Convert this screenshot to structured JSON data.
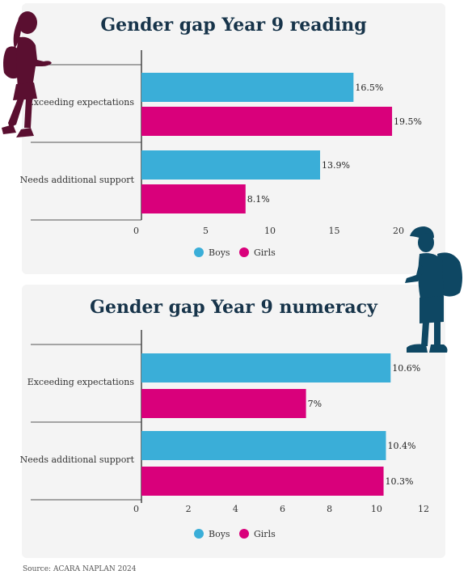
{
  "source": "Source: ACARA NAPLAN 2024",
  "colors": {
    "boys": "#3aaed8",
    "girls": "#d9007b",
    "title": "#17344a",
    "silhouette_girl": "#5a0f30",
    "silhouette_boy": "#0e4763"
  },
  "icons": {
    "girl": "girl-silhouette-icon",
    "boy": "boy-silhouette-icon"
  },
  "chart_data": [
    {
      "type": "bar",
      "orientation": "horizontal",
      "title": "Gender gap Year 9 reading",
      "categories": [
        "Exceeding expectations",
        "Needs additional support"
      ],
      "series": [
        {
          "name": "Boys",
          "values": [
            16.5,
            13.9
          ],
          "labels": [
            "16.5%",
            "13.9%"
          ]
        },
        {
          "name": "Girls",
          "values": [
            19.5,
            8.1
          ],
          "labels": [
            "19.5%",
            "8.1%"
          ]
        }
      ],
      "xlim": [
        0,
        20
      ],
      "xticks": [
        0,
        5,
        10,
        15,
        20
      ],
      "xtick_labels": [
        "0",
        "5",
        "10",
        "15",
        "20"
      ],
      "legend_position": "bottom-center",
      "grid": false
    },
    {
      "type": "bar",
      "orientation": "horizontal",
      "title": "Gender gap Year 9 numeracy",
      "categories": [
        "Exceeding expectations",
        "Needs additional support"
      ],
      "series": [
        {
          "name": "Boys",
          "values": [
            10.6,
            10.4
          ],
          "labels": [
            "10.6%",
            "10.4%"
          ]
        },
        {
          "name": "Girls",
          "values": [
            7,
            10.3
          ],
          "labels": [
            "7%",
            "10.3%"
          ]
        }
      ],
      "xlim": [
        0,
        12
      ],
      "xticks": [
        0,
        2,
        4,
        6,
        8,
        10,
        12
      ],
      "xtick_labels": [
        "0",
        "2",
        "4",
        "6",
        "8",
        "10",
        "12"
      ],
      "legend_position": "bottom-center",
      "grid": false
    }
  ]
}
